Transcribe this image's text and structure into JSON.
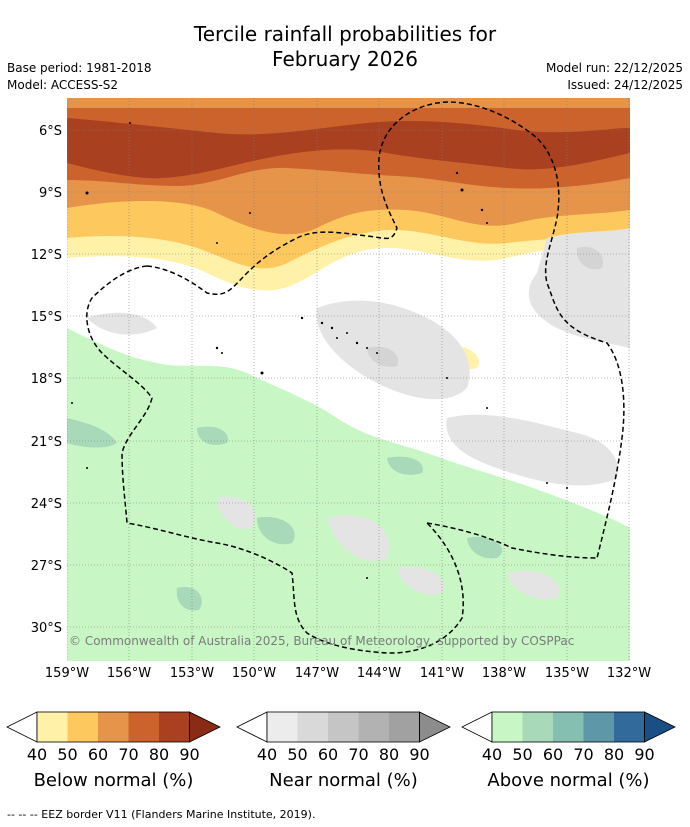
{
  "title_line1": "Tercile rainfall probabilities for",
  "title_line2": "February 2026",
  "meta": {
    "base_period": "Base period: 1981-2018",
    "model": "Model: ACCESS-S2",
    "model_run": "Model run: 22/12/2025",
    "issued": "Issued: 24/12/2025"
  },
  "map": {
    "lat_labels": [
      "6°S",
      "9°S",
      "12°S",
      "15°S",
      "18°S",
      "21°S",
      "24°S",
      "27°S",
      "30°S"
    ],
    "lon_labels": [
      "159°W",
      "156°W",
      "153°W",
      "150°W",
      "147°W",
      "144°W",
      "141°W",
      "138°W",
      "135°W",
      "132°W"
    ],
    "copyright": "© Commonwealth of Australia 2025, Bureau of Meteorology, supported by COSPPac"
  },
  "legends": [
    {
      "title": "Below normal (%)",
      "ticks": [
        "40",
        "50",
        "60",
        "70",
        "80",
        "90"
      ],
      "colors": [
        "#fff2a8",
        "#fdc95f",
        "#e6944a",
        "#cc622c",
        "#a9401f",
        "#8a2c15"
      ]
    },
    {
      "title": "Near normal (%)",
      "ticks": [
        "40",
        "50",
        "60",
        "70",
        "80",
        "90"
      ],
      "colors": [
        "#ececec",
        "#d9d9d9",
        "#c5c5c5",
        "#b2b2b2",
        "#a1a1a1",
        "#8c8c8c"
      ]
    },
    {
      "title": "Above normal (%)",
      "ticks": [
        "40",
        "50",
        "60",
        "70",
        "80",
        "90"
      ],
      "colors": [
        "#c8f7c5",
        "#a8d9b8",
        "#85bfb2",
        "#5e97a8",
        "#336a9c",
        "#1a4f86"
      ]
    }
  ],
  "eez_note": "-- -- -- EEZ border V11 (Flanders Marine Institute, 2019)."
}
